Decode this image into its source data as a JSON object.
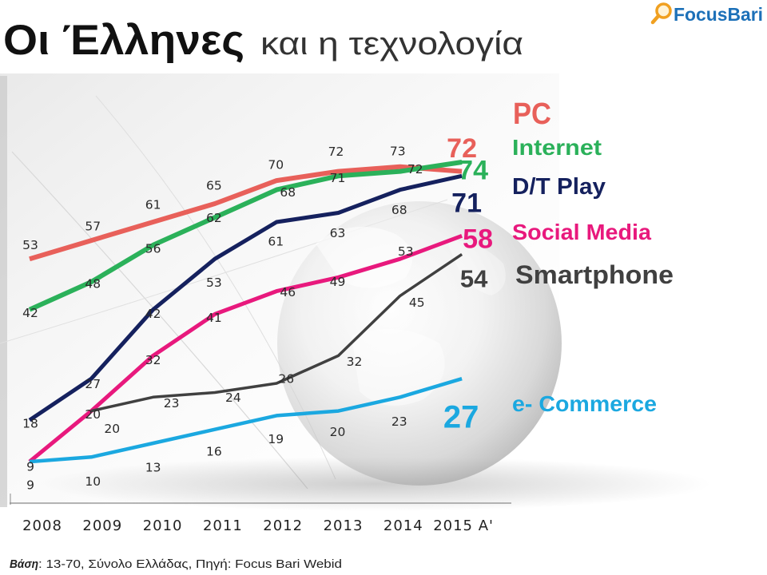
{
  "title": {
    "main": "Οι Έλληνες",
    "sub": "και η τεχνολογία"
  },
  "logo": {
    "text": "FocusBari",
    "icon": "magnifying-glass-icon",
    "color": "#1c70b8",
    "icon_color": "#f0a020"
  },
  "footer": {
    "label": "Βάση",
    "text": ": 13-70, Σύνολο Ελλάδας, Πηγή: Focus Bari Webid"
  },
  "chart_data": {
    "type": "line",
    "categories": [
      "2008",
      "2009",
      "2010",
      "2011",
      "2012",
      "2013",
      "2014",
      "2015 A'"
    ],
    "grid": false,
    "legend": "right",
    "data_labels": true,
    "series": [
      {
        "name": "PC",
        "color": "#e8605a",
        "values": [
          53,
          57,
          61,
          65,
          70,
          72,
          73,
          72
        ]
      },
      {
        "name": "Internet",
        "color": "#2bb15a",
        "values": [
          42,
          48,
          56,
          62,
          68,
          71,
          72,
          74
        ]
      },
      {
        "name": "D/T Play",
        "color": "#15215e",
        "values": [
          18,
          27,
          42,
          53,
          61,
          63,
          68,
          71
        ]
      },
      {
        "name": "Social Media",
        "color": "#e8197d",
        "values": [
          9,
          20,
          32,
          41,
          46,
          49,
          53,
          58
        ]
      },
      {
        "name": "Smartphone",
        "color": "#404040",
        "values": [
          null,
          20,
          23,
          24,
          26,
          32,
          45,
          54
        ]
      },
      {
        "name": "e- Commerce",
        "color": "#1ba8e0",
        "values": [
          9,
          10,
          13,
          16,
          19,
          20,
          23,
          27
        ]
      }
    ]
  }
}
